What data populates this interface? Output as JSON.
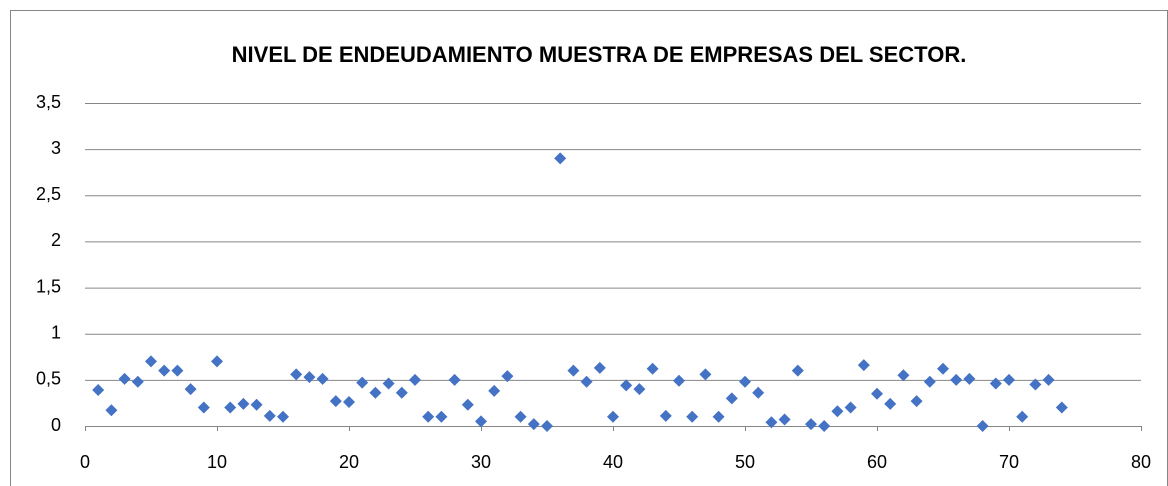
{
  "chart_data": {
    "type": "scatter",
    "title": "NIVEL DE ENDEUDAMIENTO MUESTRA DE EMPRESAS DEL SECTOR.",
    "x": [
      1,
      2,
      3,
      4,
      5,
      6,
      7,
      8,
      9,
      10,
      11,
      12,
      13,
      14,
      15,
      16,
      17,
      18,
      19,
      20,
      21,
      22,
      23,
      24,
      25,
      26,
      27,
      28,
      29,
      30,
      31,
      32,
      33,
      34,
      35,
      36,
      37,
      38,
      39,
      40,
      41,
      42,
      43,
      44,
      45,
      46,
      47,
      48,
      49,
      50,
      51,
      52,
      53,
      54,
      55,
      56,
      57,
      58,
      59,
      60,
      61,
      62,
      63,
      64,
      65,
      66,
      67,
      68,
      69,
      70,
      71,
      72,
      73,
      74
    ],
    "series": [
      {
        "color": "#4472c4",
        "values": [
          0.39,
          0.17,
          0.51,
          0.48,
          0.7,
          0.6,
          0.6,
          0.4,
          0.2,
          0.7,
          0.2,
          0.24,
          0.23,
          0.11,
          0.1,
          0.56,
          0.53,
          0.51,
          0.27,
          0.26,
          0.47,
          0.36,
          0.46,
          0.36,
          0.5,
          0.1,
          0.1,
          0.5,
          0.23,
          0.05,
          0.38,
          0.54,
          0.1,
          0.02,
          0.0,
          2.9,
          0.6,
          0.48,
          0.63,
          0.1,
          0.44,
          0.4,
          0.62,
          0.11,
          0.49,
          0.1,
          0.56,
          0.1,
          0.3,
          0.48,
          0.36,
          0.04,
          0.07,
          0.6,
          0.02,
          0.0,
          0.16,
          0.2,
          0.66,
          0.35,
          0.24,
          0.55,
          0.27,
          0.48,
          0.62,
          0.5,
          0.51,
          0.0,
          0.46,
          0.5,
          0.1,
          0.45,
          0.5,
          0.2
        ]
      }
    ],
    "xlim": [
      0,
      80
    ],
    "xticks": [
      0,
      10,
      20,
      30,
      40,
      50,
      60,
      70,
      80
    ],
    "ylim": [
      0,
      3.5
    ],
    "yticks": [
      0,
      {
        "value": 0.5,
        "label": "0,5"
      },
      1,
      {
        "value": 1.5,
        "label": "1,5"
      },
      2,
      {
        "value": 2.5,
        "label": "2,5"
      },
      3,
      {
        "value": 3.5,
        "label": "3,5"
      }
    ],
    "grid": true
  }
}
